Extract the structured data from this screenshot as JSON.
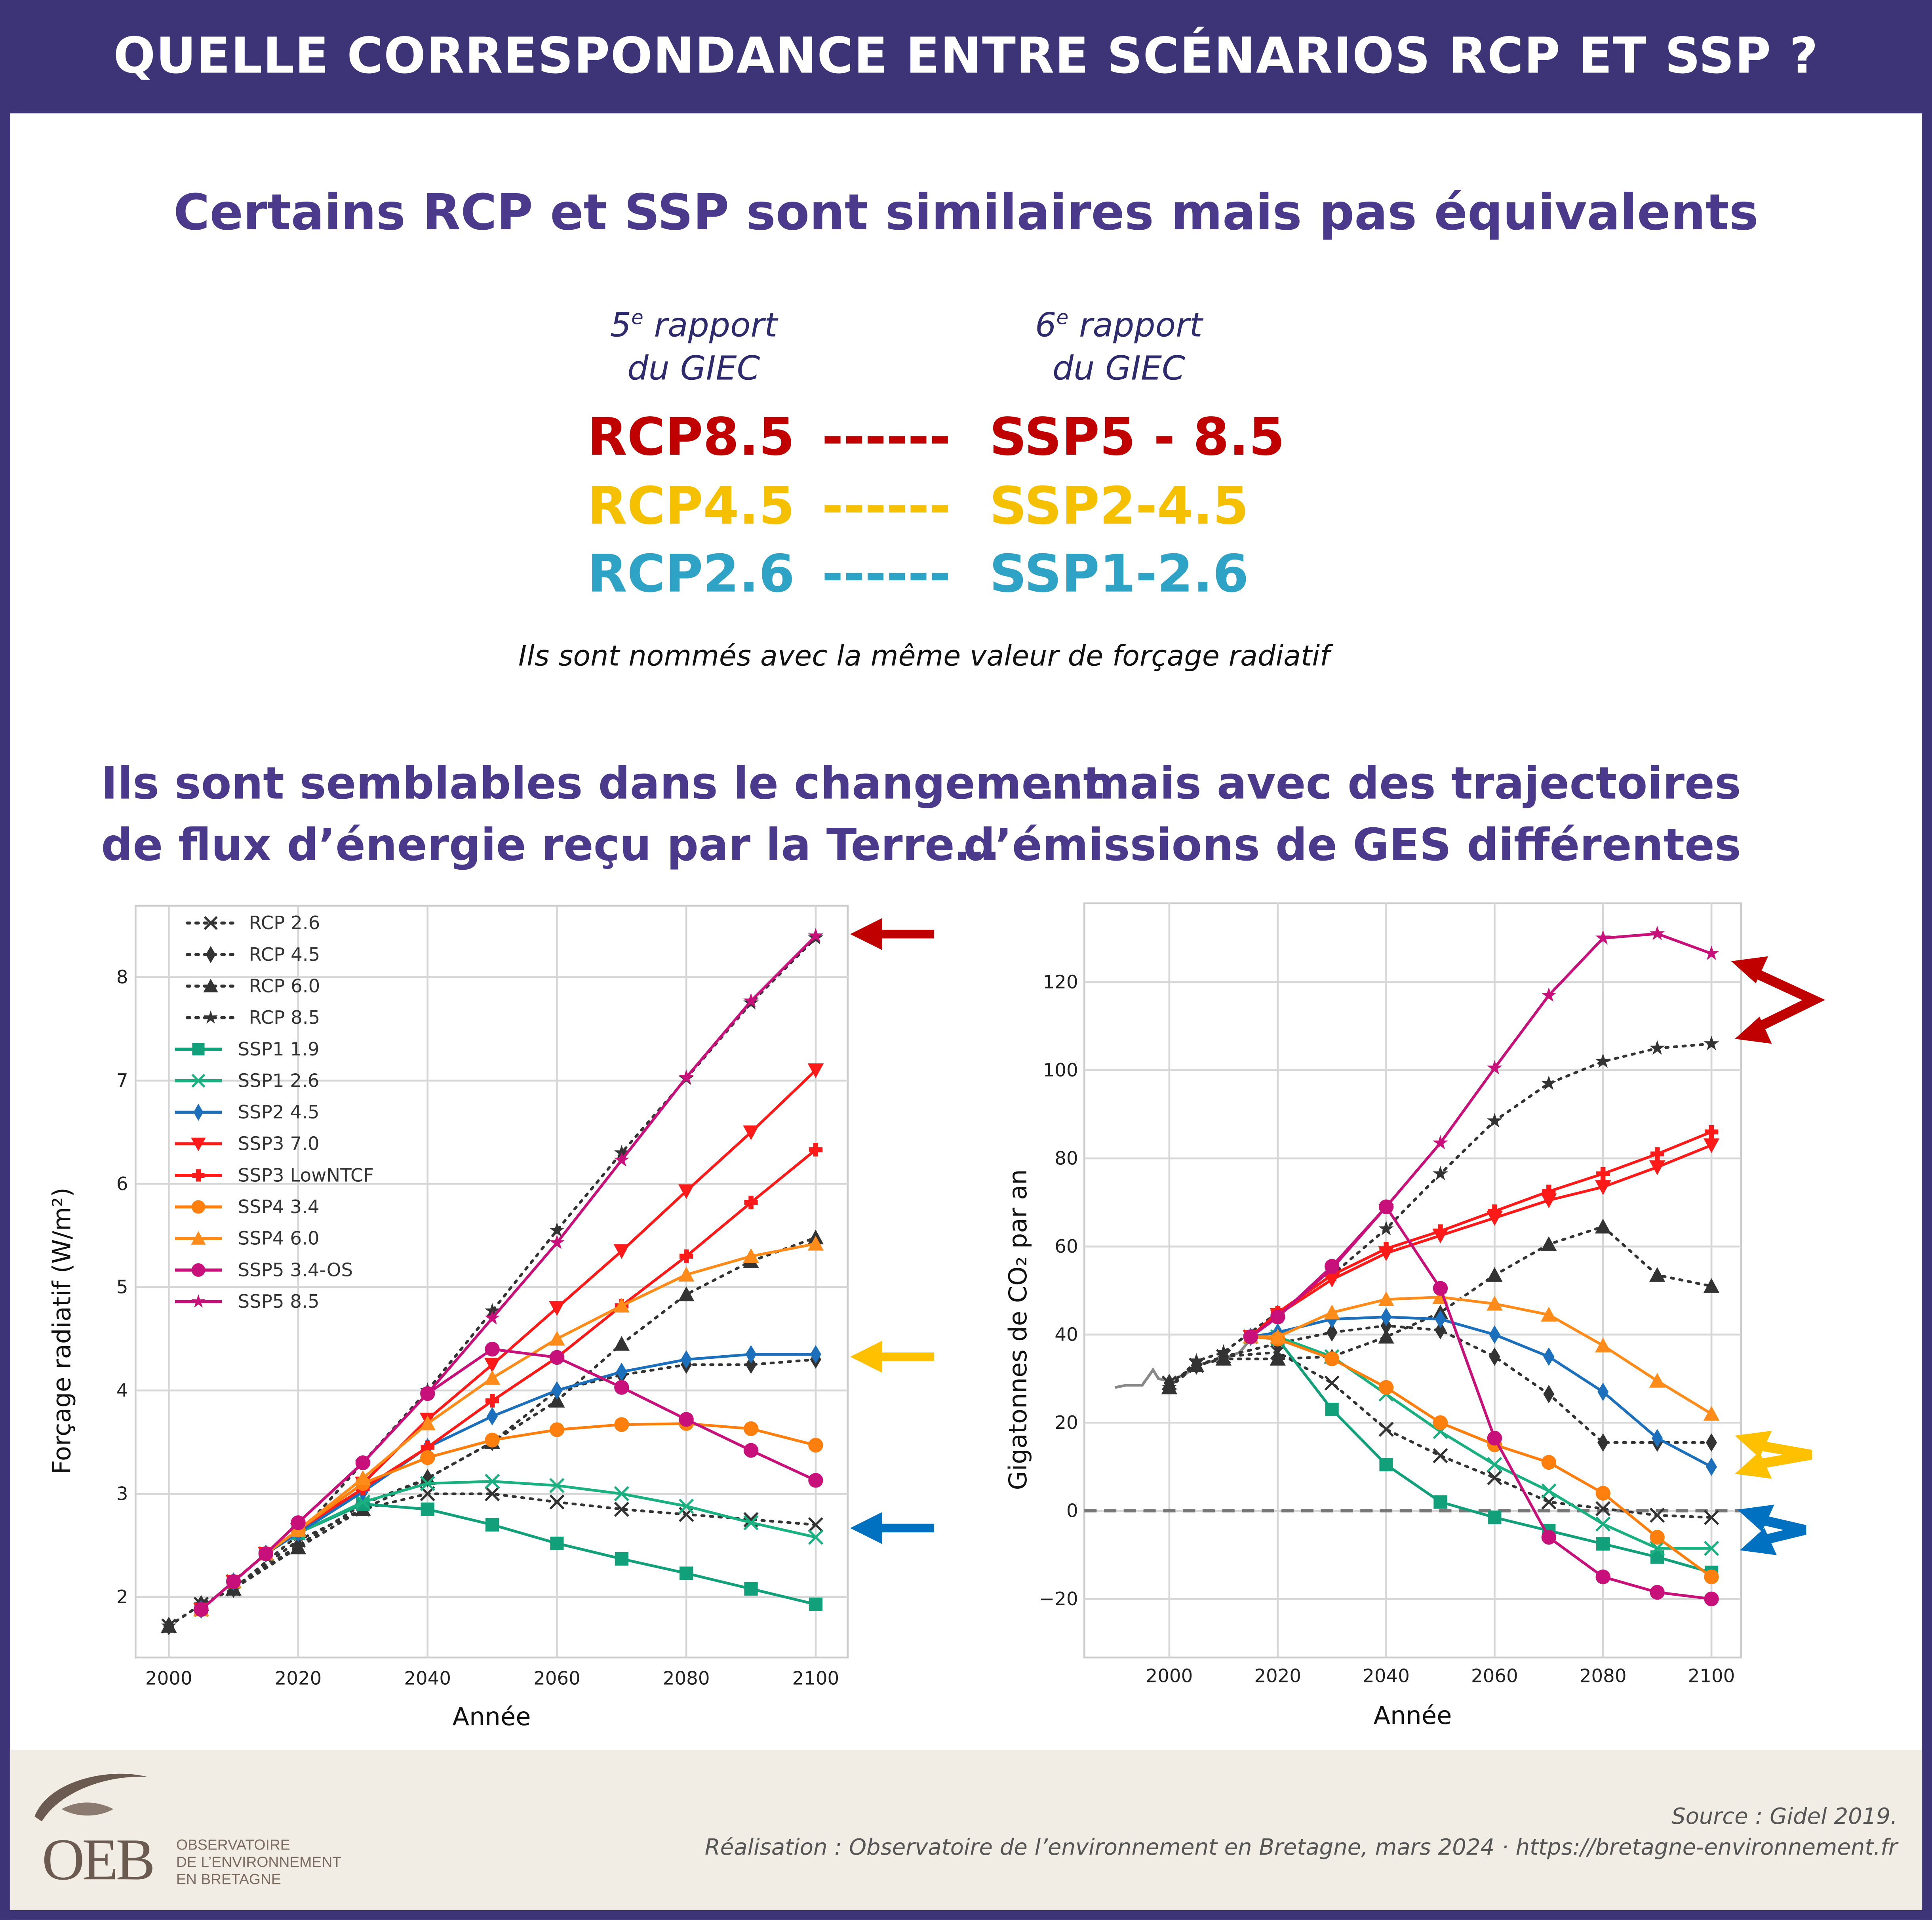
{
  "header": {
    "title": "QUELLE CORRESPONDANCE ENTRE SCÉNARIOS RCP ET SSP ?"
  },
  "subtitle": "Certains RCP et SSP sont similaires mais pas équivalents",
  "rapport5": {
    "num": "5",
    "sup": "e",
    "word": " rapport",
    "line2": "du GIEC"
  },
  "rapport6": {
    "num": "6",
    "sup": "e",
    "word": " rapport",
    "line2": "du GIEC"
  },
  "correspondences": [
    {
      "rcp": "RCP8.5",
      "dashes": "------",
      "ssp": "SSP5 - 8.5",
      "color": "#c00000"
    },
    {
      "rcp": "RCP4.5",
      "dashes": "------",
      "ssp": "SSP2-4.5",
      "color": "#f5c000"
    },
    {
      "rcp": "RCP2.6",
      "dashes": "------",
      "ssp": "SSP1-2.6",
      "color": "#2fa3c5"
    }
  ],
  "note": "Ils sont nommés avec la même valeur de forçage radiatif",
  "left_heading": {
    "line1": "Ils sont semblables dans le changement",
    "line2": "de flux d’énergie reçu par la Terre…"
  },
  "right_heading": {
    "line1": "…mais avec des trajectoires",
    "line2": "d’émissions de GES différentes"
  },
  "arrow_colors": {
    "red": "#c00000",
    "yellow": "#ffc000",
    "blue": "#0070c0"
  },
  "chart_data": [
    {
      "type": "line",
      "xlabel": "Année",
      "ylabel": "Forçage radiatif (W/m²)",
      "xlim": [
        1997,
        2105
      ],
      "ylim": [
        1.4,
        8.7
      ],
      "xticks": [
        2000,
        2020,
        2040,
        2060,
        2080,
        2100
      ],
      "yticks": [
        2,
        3,
        4,
        5,
        6,
        7,
        8
      ],
      "grid": true,
      "legend": "top-left",
      "series": [
        {
          "name": "RCP 2.6",
          "marker": "x",
          "style": "dotted",
          "color": "#333333",
          "x": [
            2000,
            2005,
            2010,
            2020,
            2030,
            2040,
            2050,
            2060,
            2070,
            2080,
            2090,
            2100
          ],
          "y": [
            1.72,
            1.93,
            2.08,
            2.55,
            2.85,
            3.0,
            3.0,
            2.92,
            2.85,
            2.8,
            2.75,
            2.7
          ]
        },
        {
          "name": "RCP 4.5",
          "marker": "diamond",
          "style": "dotted",
          "color": "#333333",
          "x": [
            2000,
            2005,
            2010,
            2020,
            2030,
            2040,
            2050,
            2060,
            2070,
            2080,
            2090,
            2100
          ],
          "y": [
            1.72,
            1.93,
            2.08,
            2.5,
            2.9,
            3.15,
            3.5,
            4.0,
            4.15,
            4.25,
            4.25,
            4.3
          ]
        },
        {
          "name": "RCP 6.0",
          "marker": "triangle",
          "style": "dotted",
          "color": "#333333",
          "x": [
            2000,
            2005,
            2010,
            2020,
            2030,
            2040,
            2050,
            2060,
            2070,
            2080,
            2090,
            2100
          ],
          "y": [
            1.72,
            1.93,
            2.08,
            2.48,
            2.85,
            3.15,
            3.5,
            3.9,
            4.45,
            4.93,
            5.25,
            5.48
          ]
        },
        {
          "name": "RCP 8.5",
          "marker": "star",
          "style": "dotted",
          "color": "#333333",
          "x": [
            2000,
            2005,
            2010,
            2020,
            2030,
            2040,
            2050,
            2060,
            2070,
            2080,
            2090,
            2100
          ],
          "y": [
            1.72,
            1.93,
            2.08,
            2.6,
            3.3,
            4.0,
            4.77,
            5.55,
            6.3,
            7.02,
            7.75,
            8.38
          ]
        },
        {
          "name": "SSP1 1.9",
          "marker": "square",
          "style": "solid",
          "color": "#12a07a",
          "x": [
            2005,
            2010,
            2015,
            2020,
            2030,
            2040,
            2050,
            2060,
            2070,
            2080,
            2090,
            2100
          ],
          "y": [
            1.88,
            2.15,
            2.42,
            2.62,
            2.9,
            2.85,
            2.7,
            2.52,
            2.37,
            2.23,
            2.08,
            1.93
          ]
        },
        {
          "name": "SSP1 2.6",
          "marker": "x",
          "style": "solid",
          "color": "#1ab07f",
          "x": [
            2005,
            2010,
            2015,
            2020,
            2030,
            2040,
            2050,
            2060,
            2070,
            2080,
            2090,
            2100
          ],
          "y": [
            1.88,
            2.15,
            2.42,
            2.62,
            2.92,
            3.1,
            3.12,
            3.08,
            3.0,
            2.88,
            2.72,
            2.58
          ]
        },
        {
          "name": "SSP2 4.5",
          "marker": "diamond",
          "style": "solid",
          "color": "#1c6fba",
          "x": [
            2005,
            2010,
            2015,
            2020,
            2030,
            2040,
            2050,
            2060,
            2070,
            2080,
            2090,
            2100
          ],
          "y": [
            1.88,
            2.15,
            2.42,
            2.62,
            3.02,
            3.45,
            3.75,
            4.0,
            4.18,
            4.3,
            4.35,
            4.35
          ]
        },
        {
          "name": "SSP3 7.0",
          "marker": "triangle-down",
          "style": "solid",
          "color": "#ff1a1a",
          "x": [
            2005,
            2010,
            2015,
            2020,
            2030,
            2040,
            2050,
            2060,
            2070,
            2080,
            2090,
            2100
          ],
          "y": [
            1.88,
            2.15,
            2.42,
            2.65,
            3.1,
            3.72,
            4.25,
            4.8,
            5.35,
            5.93,
            6.5,
            7.1
          ]
        },
        {
          "name": "SSP3 LowNTCF",
          "marker": "plus",
          "style": "solid",
          "color": "#ff1a1a",
          "x": [
            2005,
            2010,
            2015,
            2020,
            2030,
            2040,
            2050,
            2060,
            2070,
            2080,
            2090,
            2100
          ],
          "y": [
            1.88,
            2.15,
            2.42,
            2.65,
            3.05,
            3.45,
            3.9,
            4.32,
            4.82,
            5.3,
            5.82,
            6.33
          ]
        },
        {
          "name": "SSP4 3.4",
          "marker": "circle",
          "style": "solid",
          "color": "#ff7f0e",
          "x": [
            2005,
            2010,
            2015,
            2020,
            2030,
            2040,
            2050,
            2060,
            2070,
            2080,
            2090,
            2100
          ],
          "y": [
            1.88,
            2.15,
            2.42,
            2.65,
            3.1,
            3.35,
            3.52,
            3.62,
            3.67,
            3.68,
            3.63,
            3.47
          ]
        },
        {
          "name": "SSP4 6.0",
          "marker": "triangle",
          "style": "solid",
          "color": "#ff8c1a",
          "x": [
            2005,
            2010,
            2015,
            2020,
            2030,
            2040,
            2050,
            2060,
            2070,
            2080,
            2090,
            2100
          ],
          "y": [
            1.88,
            2.15,
            2.42,
            2.65,
            3.15,
            3.68,
            4.12,
            4.5,
            4.82,
            5.12,
            5.3,
            5.42
          ]
        },
        {
          "name": "SSP5 3.4-OS",
          "marker": "circle",
          "style": "solid",
          "color": "#c8107a",
          "x": [
            2005,
            2010,
            2015,
            2020,
            2030,
            2040,
            2050,
            2060,
            2070,
            2080,
            2090,
            2100
          ],
          "y": [
            1.88,
            2.15,
            2.42,
            2.72,
            3.3,
            3.97,
            4.4,
            4.32,
            4.03,
            3.72,
            3.42,
            3.13
          ]
        },
        {
          "name": "SSP5 8.5",
          "marker": "star",
          "style": "solid",
          "color": "#c8107a",
          "x": [
            2005,
            2010,
            2015,
            2020,
            2030,
            2040,
            2050,
            2060,
            2070,
            2080,
            2090,
            2100
          ],
          "y": [
            1.88,
            2.15,
            2.42,
            2.72,
            3.3,
            3.97,
            4.7,
            5.43,
            6.23,
            7.03,
            7.77,
            8.4
          ]
        }
      ]
    },
    {
      "type": "line",
      "xlabel": "Année",
      "ylabel": "Gigatonnes de CO₂ par an",
      "xlim": [
        1985,
        2105
      ],
      "ylim": [
        -33,
        138
      ],
      "xticks": [
        2000,
        2020,
        2040,
        2060,
        2080,
        2100
      ],
      "yticks": [
        -20,
        0,
        20,
        40,
        60,
        80,
        100,
        120
      ],
      "grid": true,
      "zero_line": "dashed",
      "series": [
        {
          "marker": "none",
          "style": "solid",
          "color": "#888888",
          "x": [
            1990,
            1992,
            1995,
            1997,
            1998,
            2000,
            2003,
            2005,
            2008,
            2010,
            2013,
            2015
          ],
          "y": [
            28,
            28.5,
            28.5,
            32,
            30,
            29.5,
            31,
            33,
            34,
            34.5,
            36,
            39
          ]
        },
        {
          "marker": "x",
          "style": "dotted",
          "color": "#333333",
          "x": [
            2000,
            2005,
            2010,
            2020,
            2030,
            2040,
            2050,
            2060,
            2070,
            2080,
            2090,
            2100
          ],
          "y": [
            29,
            33,
            35,
            36,
            29,
            18.5,
            12.5,
            7.5,
            2,
            0.5,
            -1,
            -1.5
          ]
        },
        {
          "marker": "diamond",
          "style": "dotted",
          "color": "#333333",
          "x": [
            2000,
            2005,
            2010,
            2020,
            2030,
            2040,
            2050,
            2060,
            2070,
            2080,
            2090,
            2100
          ],
          "y": [
            29,
            33,
            35,
            38,
            40.5,
            42,
            41,
            35,
            26.5,
            15.5,
            15.5,
            15.5
          ]
        },
        {
          "marker": "triangle",
          "style": "dotted",
          "color": "#333333",
          "x": [
            2000,
            2005,
            2010,
            2020,
            2030,
            2040,
            2050,
            2060,
            2070,
            2080,
            2090,
            2100
          ],
          "y": [
            28,
            33,
            34.5,
            34.5,
            35,
            39.5,
            45,
            53.5,
            60.5,
            64.5,
            53.5,
            51
          ]
        },
        {
          "marker": "star",
          "style": "dotted",
          "color": "#333333",
          "x": [
            2000,
            2005,
            2010,
            2020,
            2030,
            2040,
            2050,
            2060,
            2070,
            2080,
            2090,
            2100
          ],
          "y": [
            28,
            34,
            36,
            45,
            53.5,
            64,
            76.5,
            88.5,
            97,
            102,
            105,
            106
          ]
        },
        {
          "marker": "square",
          "style": "solid",
          "color": "#12a07a",
          "x": [
            2015,
            2020,
            2030,
            2040,
            2050,
            2060,
            2070,
            2080,
            2090,
            2100
          ],
          "y": [
            39.5,
            39,
            23,
            10.5,
            2,
            -1.5,
            -4.5,
            -7.5,
            -10.5,
            -14
          ]
        },
        {
          "marker": "x",
          "style": "solid",
          "color": "#1ab07f",
          "x": [
            2015,
            2020,
            2030,
            2040,
            2050,
            2060,
            2070,
            2080,
            2090,
            2100
          ],
          "y": [
            39.5,
            39.5,
            35,
            26.5,
            18,
            10.5,
            4.5,
            -3,
            -8.5,
            -8.5
          ]
        },
        {
          "marker": "diamond",
          "style": "solid",
          "color": "#1c6fba",
          "x": [
            2015,
            2020,
            2030,
            2040,
            2050,
            2060,
            2070,
            2080,
            2090,
            2100
          ],
          "y": [
            39.5,
            40.5,
            43.5,
            44,
            43.5,
            40,
            35,
            27,
            16.5,
            10
          ]
        },
        {
          "marker": "triangle-down",
          "style": "solid",
          "color": "#ff1a1a",
          "x": [
            2015,
            2020,
            2030,
            2040,
            2050,
            2060,
            2070,
            2080,
            2090,
            2100
          ],
          "y": [
            39.5,
            44.5,
            52.5,
            58.5,
            62.5,
            66.5,
            70.5,
            73.5,
            78,
            83
          ]
        },
        {
          "marker": "plus",
          "style": "solid",
          "color": "#ff1a1a",
          "x": [
            2015,
            2020,
            2030,
            2040,
            2050,
            2060,
            2070,
            2080,
            2090,
            2100
          ],
          "y": [
            39.5,
            45,
            53.5,
            59.5,
            63.5,
            68,
            72.5,
            76.5,
            81,
            86
          ]
        },
        {
          "marker": "circle",
          "style": "solid",
          "color": "#ff7f0e",
          "x": [
            2015,
            2020,
            2030,
            2040,
            2050,
            2060,
            2070,
            2080,
            2090,
            2100
          ],
          "y": [
            39.5,
            39,
            34.5,
            28,
            20,
            15,
            11,
            4,
            -6,
            -15
          ]
        },
        {
          "marker": "triangle",
          "style": "solid",
          "color": "#ff8c1a",
          "x": [
            2015,
            2020,
            2030,
            2040,
            2050,
            2060,
            2070,
            2080,
            2090,
            2100
          ],
          "y": [
            39.5,
            39.5,
            45,
            48,
            48.5,
            47,
            44.5,
            37.5,
            29.5,
            22
          ]
        },
        {
          "marker": "circle",
          "style": "solid",
          "color": "#c8107a",
          "x": [
            2015,
            2020,
            2030,
            2040,
            2050,
            2060,
            2070,
            2080,
            2090,
            2100
          ],
          "y": [
            39.5,
            44,
            55.5,
            69,
            50.5,
            16.5,
            -6,
            -15,
            -18.5,
            -20
          ]
        },
        {
          "marker": "star",
          "style": "solid",
          "color": "#c8107a",
          "x": [
            2015,
            2020,
            2030,
            2040,
            2050,
            2060,
            2070,
            2080,
            2090,
            2100
          ],
          "y": [
            39.5,
            44,
            55,
            69,
            83.5,
            100.5,
            117,
            130,
            131,
            126.5
          ]
        }
      ]
    }
  ],
  "footer": {
    "source": "Source : Gidel 2019.",
    "credit": "Réalisation : Observatoire de l’environnement en Bretagne, mars 2024 · https://bretagne-environnement.fr",
    "logo": {
      "abbr": "OEB",
      "line1": "OBSERVATOIRE",
      "line2": "DE L’ENVIRONNEMENT",
      "line3": "EN BRETAGNE"
    }
  }
}
